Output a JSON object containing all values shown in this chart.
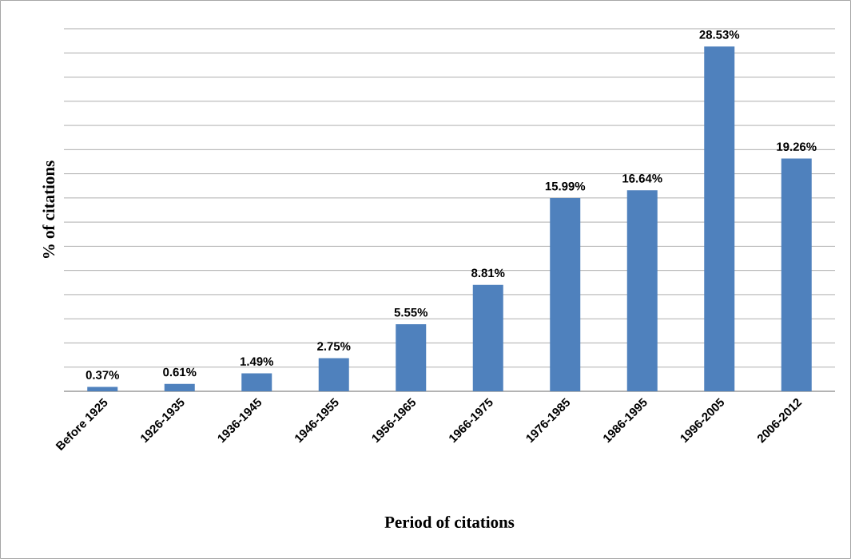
{
  "chart_data": {
    "type": "bar",
    "xlabel": "Period of citations",
    "ylabel": "% of citations",
    "categories": [
      "Before 1925",
      "1926-1935",
      "1936-1945",
      "1946-1955",
      "1956-1965",
      "1966-1975",
      "1976-1985",
      "1986-1995",
      "1996-2005",
      "2006-2012"
    ],
    "values": [
      0.37,
      0.61,
      1.49,
      2.75,
      5.55,
      8.81,
      15.99,
      16.64,
      28.53,
      19.26
    ],
    "value_labels": [
      "0.37%",
      "0.61%",
      "1.49%",
      "2.75%",
      "5.55%",
      "8.81%",
      "15.99%",
      "16.64%",
      "28.53%",
      "19.26%"
    ],
    "color": "#4f81bd",
    "ylim": [
      0,
      30
    ],
    "grid": "y"
  }
}
